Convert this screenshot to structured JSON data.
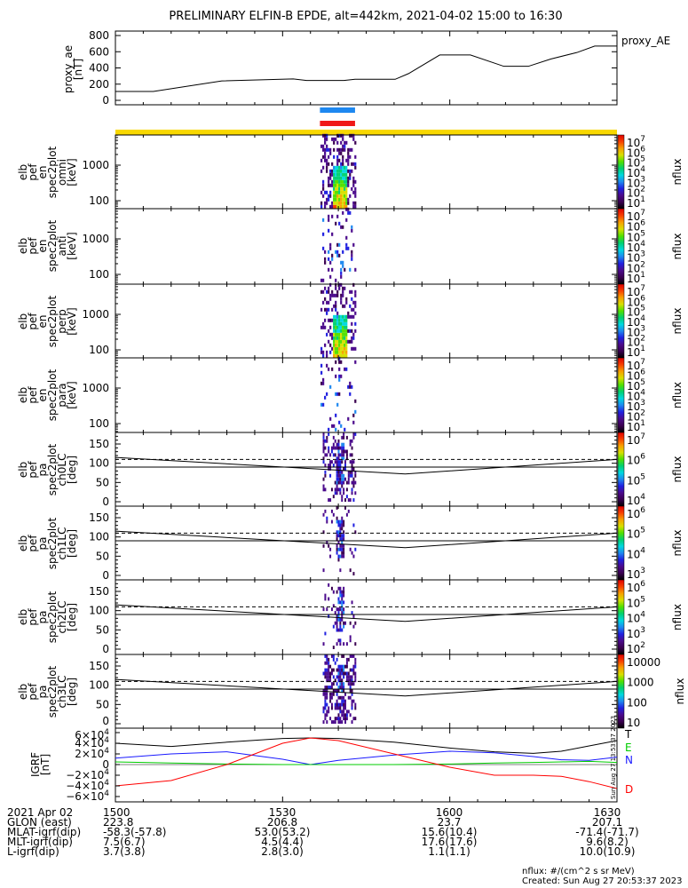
{
  "title": "PRELIMINARY ELFIN-B EPDE, alt=442km, 2021-04-02 15:00 to 16:30",
  "colors": {
    "blue_bar": "#1e88f0",
    "red_bar": "#f01818",
    "yellow_bar": "#f8d800"
  },
  "chart_data": [
    {
      "type": "line",
      "name": "proxy_ae",
      "ylabel": "proxy_ae [nT]",
      "legend": "proxy_AE",
      "yticks": [
        "0",
        "200",
        "400",
        "600",
        "800"
      ],
      "ylim": [
        0,
        800
      ],
      "xlim_minutes": [
        0,
        90
      ],
      "x_minutes": [
        0,
        6.8,
        19.1,
        31.9,
        34.3,
        41.0,
        43.0,
        50.2,
        52.6,
        58.2,
        63.7,
        69.7,
        74.1,
        78.1,
        82.8,
        86.0,
        90
      ],
      "values": [
        110,
        110,
        240,
        265,
        245,
        245,
        260,
        260,
        330,
        560,
        560,
        420,
        420,
        510,
        590,
        670,
        670
      ]
    },
    {
      "type": "heatmap",
      "name": "omni",
      "ylabel": [
        "elb",
        "pef",
        "en",
        "spec2plot",
        "omni",
        "[keV]"
      ],
      "yticks": [
        "1000",
        "100"
      ],
      "colorbar_label": "nflux",
      "colorbar_ticks": [
        "1",
        "2",
        "3",
        "4",
        "5",
        "6",
        "7"
      ]
    },
    {
      "type": "heatmap",
      "name": "anti",
      "ylabel": [
        "elb",
        "pef",
        "en",
        "spec2plot",
        "anti",
        "[keV]"
      ],
      "yticks": [
        "1000",
        "100"
      ],
      "colorbar_label": "nflux",
      "colorbar_ticks": [
        "1",
        "2",
        "3",
        "4",
        "5",
        "6",
        "7"
      ]
    },
    {
      "type": "heatmap",
      "name": "perp",
      "ylabel": [
        "elb",
        "pef",
        "en",
        "spec2plot",
        "perp",
        "[keV]"
      ],
      "yticks": [
        "1000",
        "100"
      ],
      "colorbar_label": "nflux",
      "colorbar_ticks": [
        "1",
        "2",
        "3",
        "4",
        "5",
        "6",
        "7"
      ]
    },
    {
      "type": "heatmap",
      "name": "para",
      "ylabel": [
        "elb",
        "pef",
        "en",
        "spec2plot",
        "para",
        "[keV]"
      ],
      "yticks": [
        "1000",
        "100"
      ],
      "colorbar_label": "nflux",
      "colorbar_ticks": [
        "1",
        "2",
        "3",
        "4",
        "5",
        "6",
        "7"
      ]
    },
    {
      "type": "heatmap",
      "name": "ch0LC",
      "ylabel": [
        "elb",
        "pef",
        "pa",
        "spec2plot",
        "ch0LC",
        "[deg]"
      ],
      "yticks": [
        "0",
        "50",
        "100",
        "150"
      ],
      "colorbar_label": "nflux",
      "colorbar_ticks": [
        "4",
        "5",
        "6",
        "7"
      ]
    },
    {
      "type": "heatmap",
      "name": "ch1LC",
      "ylabel": [
        "elb",
        "pef",
        "pa",
        "spec2plot",
        "ch1LC",
        "[deg]"
      ],
      "yticks": [
        "0",
        "50",
        "100",
        "150"
      ],
      "colorbar_label": "nflux",
      "colorbar_ticks": [
        "3",
        "4",
        "5",
        "6"
      ]
    },
    {
      "type": "heatmap",
      "name": "ch2LC",
      "ylabel": [
        "elb",
        "pef",
        "pa",
        "spec2plot",
        "ch2LC",
        "[deg]"
      ],
      "yticks": [
        "0",
        "50",
        "100",
        "150"
      ],
      "colorbar_label": "nflux",
      "colorbar_ticks": [
        "2",
        "3",
        "4",
        "5",
        "6"
      ]
    },
    {
      "type": "heatmap",
      "name": "ch3LC",
      "ylabel": [
        "elb",
        "pef",
        "pa",
        "spec2plot",
        "ch3LC",
        "[deg]"
      ],
      "yticks": [
        "0",
        "50",
        "100",
        "150"
      ],
      "colorbar_label": "nflux",
      "colorbar_ticks_plain": [
        "10",
        "100",
        "1000",
        "10000"
      ]
    },
    {
      "type": "line",
      "name": "IGRF",
      "ylabel": [
        "IGRF",
        "[nT]"
      ],
      "yticks": [
        "-6",
        "-4",
        "-2",
        "0",
        "2",
        "4",
        "6"
      ],
      "ylim": [
        -60000,
        60000
      ],
      "x_minutes": [
        0,
        10,
        20,
        30,
        35,
        40,
        50,
        60,
        68,
        75,
        80,
        85,
        90
      ],
      "series": [
        {
          "name": "T",
          "color": "#000000",
          "values": [
            40000,
            34000,
            42000,
            49000,
            50000,
            49000,
            42000,
            31000,
            24000,
            21000,
            25000,
            35000,
            45000
          ]
        },
        {
          "name": "N",
          "color": "#1a1aff",
          "values": [
            12000,
            20000,
            24000,
            10000,
            0,
            8000,
            18000,
            25000,
            22000,
            15000,
            9000,
            8000,
            14000
          ]
        },
        {
          "name": "E",
          "color": "#00cc00",
          "values": [
            5000,
            3000,
            1000,
            0,
            0,
            0,
            0,
            1000,
            3000,
            4000,
            5000,
            6000,
            4000
          ]
        },
        {
          "name": "D",
          "color": "#ff0000",
          "values": [
            -40000,
            -30000,
            0,
            40000,
            50000,
            45000,
            20000,
            -5000,
            -20000,
            -20000,
            -22000,
            -32000,
            -45000
          ]
        }
      ],
      "vertical_stamp": "Sun Aug 27 13:53:37 2023"
    }
  ],
  "pa_lines": {
    "x_minutes": [
      0,
      52,
      90
    ],
    "loss_cone": [
      115,
      72,
      110
    ],
    "anti_loss_cone": [
      90,
      90,
      90
    ],
    "dashed": [
      110,
      110,
      110
    ]
  },
  "footer": {
    "rows": [
      [
        "2021 Apr 02",
        "1500",
        "1530",
        "1600",
        "1630"
      ],
      [
        "GLON (east)",
        "223.8",
        "206.8",
        "23.7",
        "207.1"
      ],
      [
        "MLAT-igrf(dip)",
        "-58.3(-57.8)",
        "53.0(53.2)",
        "15.6(10.4)",
        "-71.4(-71.7)"
      ],
      [
        "MLT-igrf(dip)",
        "7.5(6.7)",
        "4.5(4.4)",
        "17.6(17.6)",
        "9.6(8.2)"
      ],
      [
        "L-igrf(dip)",
        "3.7(3.8)",
        "2.8(3.0)",
        "1.1(1.1)",
        "10.0(10.9)"
      ]
    ],
    "units_note": "nflux: #/(cm^2 s sr MeV)",
    "created": "Created: Sun Aug 27 20:53:37 2023"
  }
}
